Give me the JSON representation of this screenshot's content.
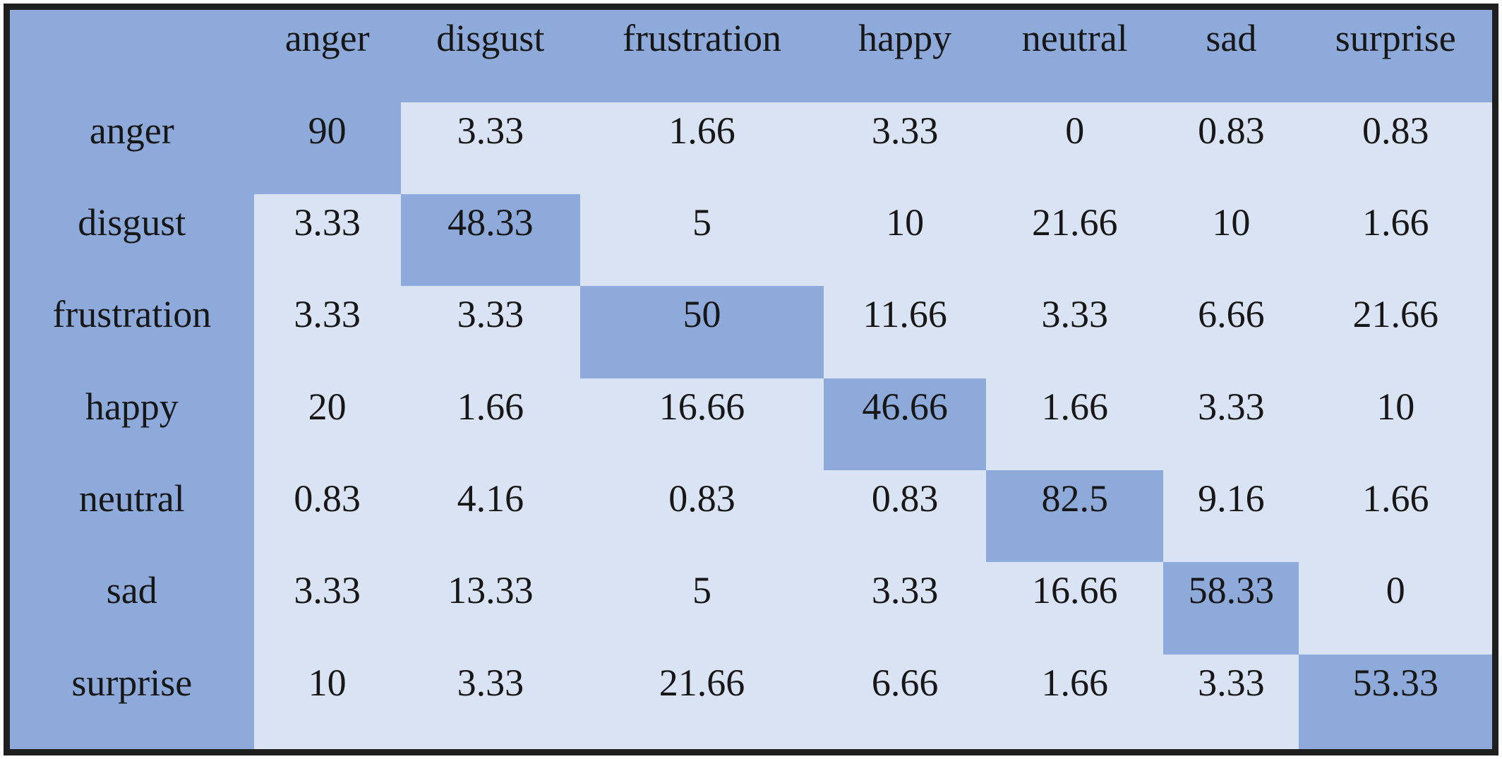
{
  "chart_data": {
    "type": "heatmap",
    "description": "confusion matrix of emotion classification, values in percent",
    "columns": [
      "anger",
      "disgust",
      "frustration",
      "happy",
      "neutral",
      "sad",
      "surprise"
    ],
    "rows": [
      {
        "label": "anger",
        "values": [
          "90",
          "3.33",
          "1.66",
          "3.33",
          "0",
          "0.83",
          "0.83"
        ]
      },
      {
        "label": "disgust",
        "values": [
          "3.33",
          "48.33",
          "5",
          "10",
          "21.66",
          "10",
          "1.66"
        ]
      },
      {
        "label": "frustration",
        "values": [
          "3.33",
          "3.33",
          "50",
          "11.66",
          "3.33",
          "6.66",
          "21.66"
        ]
      },
      {
        "label": "happy",
        "values": [
          "20",
          "1.66",
          "16.66",
          "46.66",
          "1.66",
          "3.33",
          "10"
        ]
      },
      {
        "label": "neutral",
        "values": [
          "0.83",
          "4.16",
          "0.83",
          "0.83",
          "82.5",
          "9.16",
          "1.66"
        ]
      },
      {
        "label": "sad",
        "values": [
          "3.33",
          "13.33",
          "5",
          "3.33",
          "16.66",
          "58.33",
          "0"
        ]
      },
      {
        "label": "surprise",
        "values": [
          "10",
          "3.33",
          "21.66",
          "6.66",
          "1.66",
          "3.33",
          "53.33"
        ]
      }
    ],
    "diagonal_highlighted": true,
    "legend_position": "none",
    "grid": false,
    "colors": {
      "header_and_diagonal_bg": "#8eaadb",
      "offdiagonal_bg": "#dae3f3",
      "border": "#1f1f1f",
      "text": "#171717"
    }
  }
}
